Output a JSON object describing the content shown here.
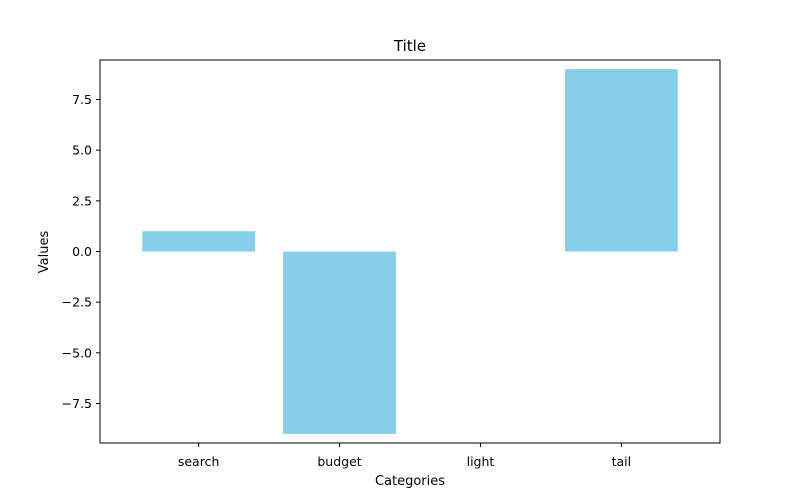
{
  "chart_data": {
    "type": "bar",
    "title": "Title",
    "xlabel": "Categories",
    "ylabel": "Values",
    "categories": [
      "search",
      "budget",
      "light",
      "tail"
    ],
    "values": [
      1,
      -9,
      0,
      9
    ],
    "ylim": [
      -9.45,
      9.45
    ],
    "yticks": [
      -7.5,
      -5.0,
      -2.5,
      0.0,
      2.5,
      5.0,
      7.5
    ],
    "ytick_labels": [
      "−7.5",
      "−5.0",
      "−2.5",
      "0.0",
      "2.5",
      "5.0",
      "7.5"
    ],
    "grid": false,
    "legend": "none",
    "colors": {
      "bar": "#87CEEB",
      "axis": "#000000",
      "background": "#ffffff"
    }
  }
}
